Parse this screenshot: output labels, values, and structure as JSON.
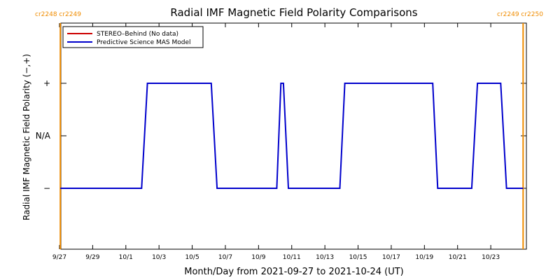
{
  "chart_data": {
    "type": "line",
    "title": "Radial IMF Magnetic Field Polarity Comparisons",
    "xlabel": "Month/Day from 2021-09-27 to 2021-10-24 (UT)",
    "ylabel": "Radial IMF Magnetic Field Polarity (−,+)",
    "xlim": [
      0,
      28
    ],
    "ylim": [
      -1.5,
      1.5
    ],
    "grid": false,
    "legend_position": "top-left",
    "x_tick_labels": [
      "9/27",
      "9/29",
      "10/1",
      "10/3",
      "10/5",
      "10/7",
      "10/9",
      "10/11",
      "10/13",
      "10/15",
      "10/17",
      "10/19",
      "10/21",
      "10/23"
    ],
    "x_tick_days": [
      0,
      2,
      4,
      6,
      8,
      10,
      12,
      14,
      16,
      18,
      20,
      22,
      24,
      26
    ],
    "y_tick_labels": [
      "+",
      "N/A",
      "−"
    ],
    "y_tick_values": [
      1,
      0,
      -1
    ],
    "carrington_markers": [
      {
        "day": 0.05,
        "label": "cr2248 cr2249",
        "side": "left"
      },
      {
        "day": 27.95,
        "label": "cr2249 cr2250",
        "side": "right"
      }
    ],
    "series": [
      {
        "name": "STEREO–Behind (No data)",
        "color": "#cc0000",
        "x": [],
        "y": []
      },
      {
        "name": "Predictive Science MAS Model",
        "color": "#0000cc",
        "x": [
          0.05,
          4.95,
          5.3,
          9.15,
          9.5,
          13.1,
          13.35,
          13.5,
          13.8,
          16.9,
          17.2,
          22.5,
          22.8,
          24.85,
          25.2,
          26.6,
          26.95,
          27.95
        ],
        "y": [
          -1,
          -1,
          1,
          1,
          -1,
          -1,
          1,
          1,
          -1,
          -1,
          1,
          1,
          -1,
          -1,
          1,
          1,
          -1,
          -1
        ]
      }
    ],
    "colors": {
      "carrington": "#f08c00",
      "axes": "#000000"
    }
  }
}
